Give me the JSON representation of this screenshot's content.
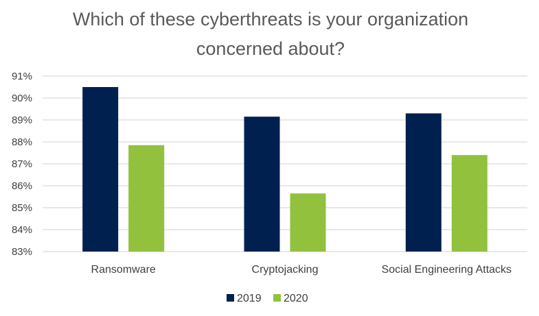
{
  "chart_data": {
    "type": "bar",
    "title_lines": [
      "Which of these cyberthreats is your organization",
      "concerned about?"
    ],
    "categories": [
      "Ransomware",
      "Cryptojacking",
      "Social Engineering Attacks"
    ],
    "series": [
      {
        "name": "2019",
        "color": "#002050",
        "values": [
          90.5,
          89.15,
          89.3
        ]
      },
      {
        "name": "2020",
        "color": "#92c13e",
        "values": [
          87.85,
          85.65,
          87.4
        ]
      }
    ],
    "ylim": [
      83,
      91
    ],
    "yticks": [
      "83%",
      "84%",
      "85%",
      "86%",
      "87%",
      "88%",
      "89%",
      "90%",
      "91%"
    ],
    "grid": true,
    "legend_position": "bottom"
  }
}
